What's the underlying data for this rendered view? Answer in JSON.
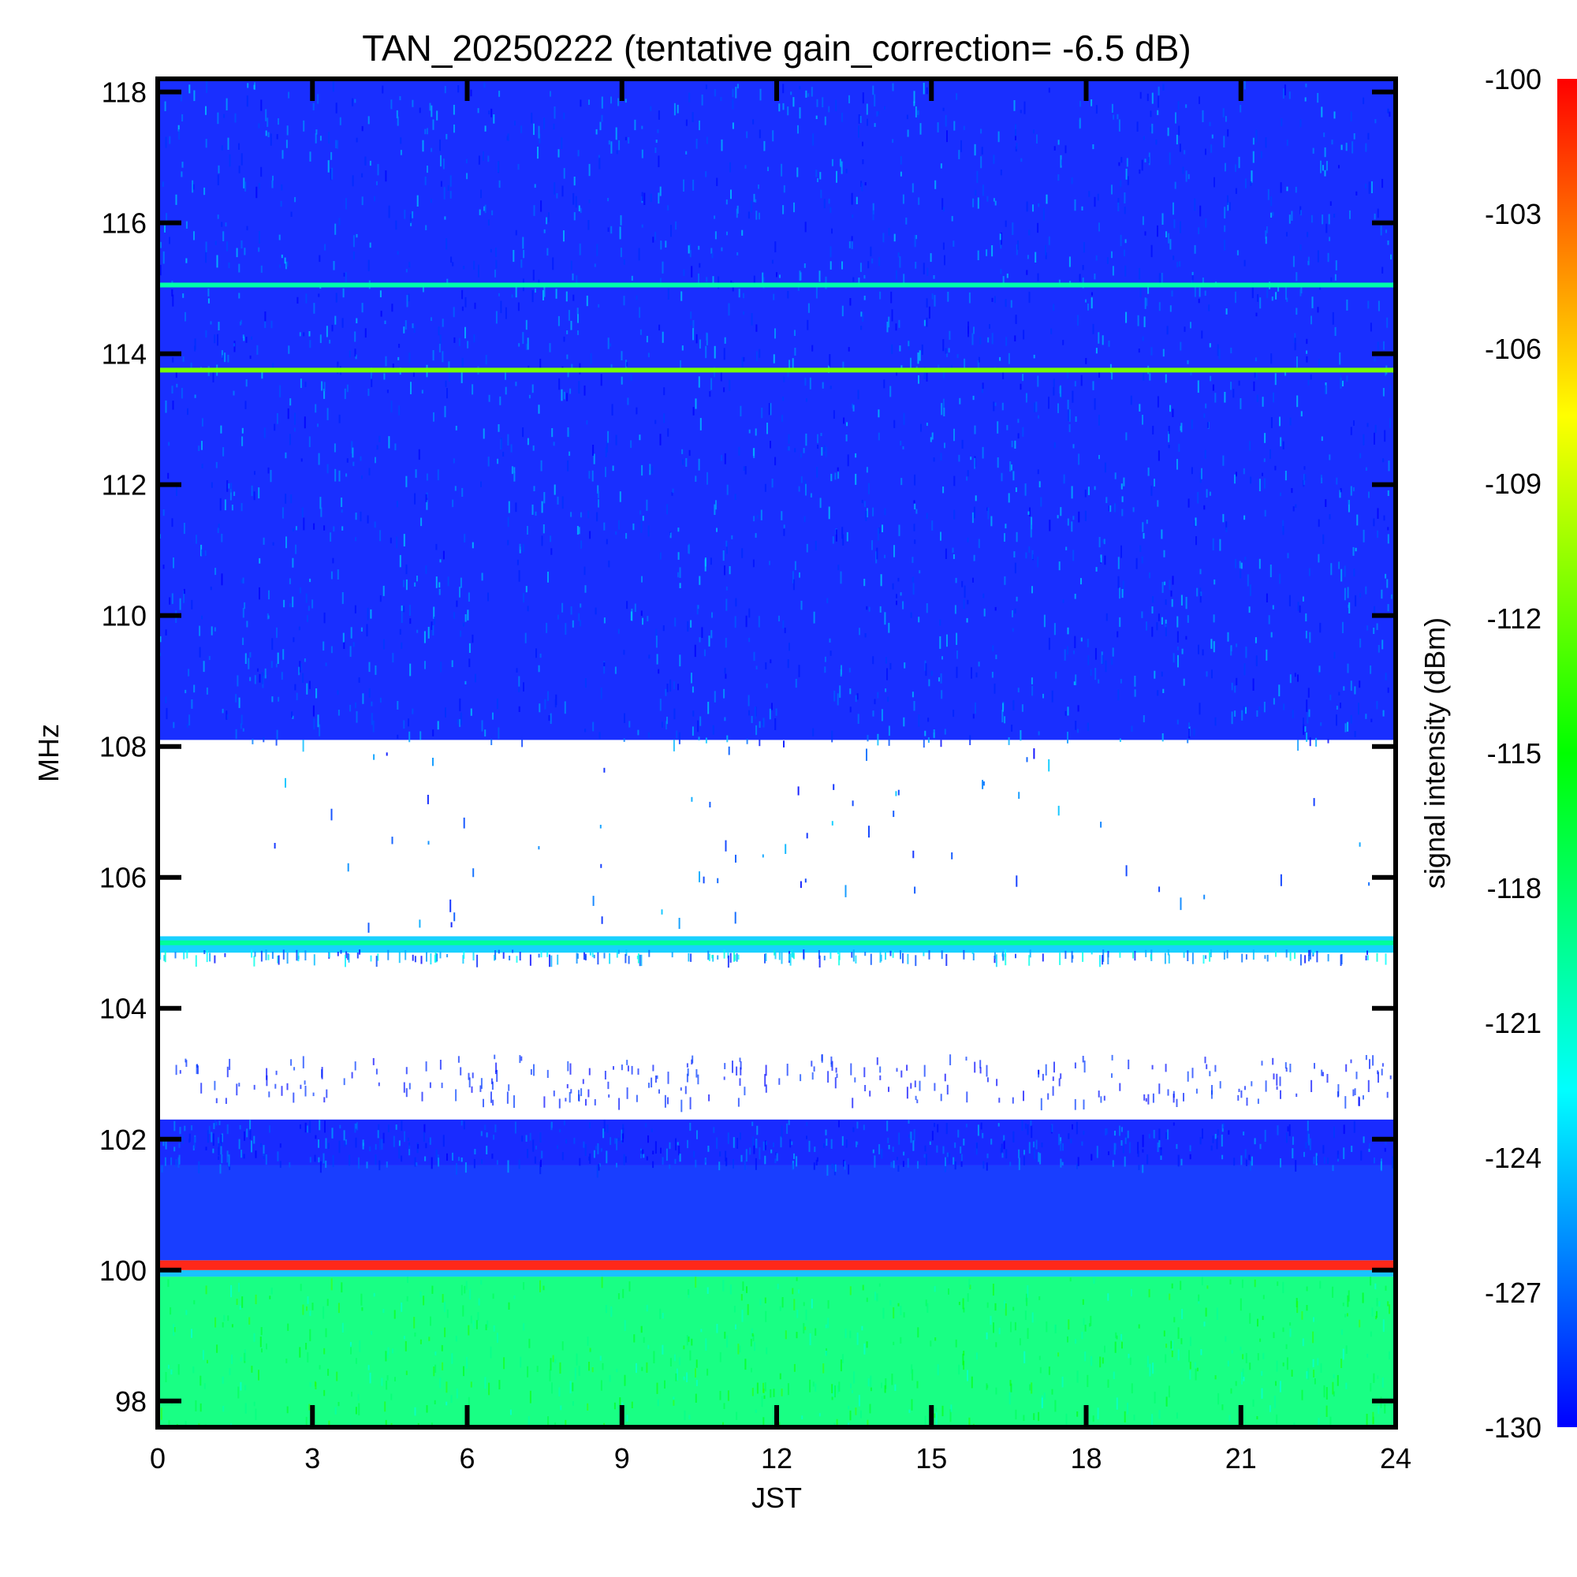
{
  "chart_data": {
    "type": "heatmap",
    "title": "TAN_20250222 (tentative gain_correction= -6.5 dB)",
    "xlabel": "JST",
    "ylabel": "MHz",
    "colorbar_label": "signal intensity (dBm)",
    "xlim": [
      0,
      24
    ],
    "ylim": [
      97.6,
      118.2
    ],
    "x_ticks": [
      0,
      3,
      6,
      9,
      12,
      15,
      18,
      21,
      24
    ],
    "x_tick_labels": [
      "0",
      "3",
      "6",
      "9",
      "12",
      "15",
      "18",
      "21",
      "24"
    ],
    "y_ticks": [
      98,
      100,
      102,
      104,
      106,
      108,
      110,
      112,
      114,
      116,
      118
    ],
    "y_tick_labels": [
      "98",
      "100",
      "102",
      "104",
      "106",
      "108",
      "110",
      "112",
      "114",
      "116",
      "118"
    ],
    "color_range": [
      -130,
      -100
    ],
    "colorbar_ticks": [
      -100,
      -103,
      -106,
      -109,
      -112,
      -115,
      -118,
      -121,
      -124,
      -127,
      -130
    ],
    "colorbar_tick_labels": [
      "-100",
      "-103",
      "-106",
      "-109",
      "-112",
      "-115",
      "-118",
      "-121",
      "-124",
      "-127",
      "-130"
    ],
    "colormap": [
      "#0000ff",
      "#00ffff",
      "#00ff00",
      "#ffff00",
      "#ff0000"
    ],
    "bands": [
      {
        "f_min": 97.6,
        "f_max": 99.9,
        "level_dBm": -118.5
      },
      {
        "f_min": 99.9,
        "f_max": 100.0,
        "level_dBm": -124.5
      },
      {
        "f_min": 100.0,
        "f_max": 100.15,
        "level_dBm": -100.5
      },
      {
        "f_min": 100.15,
        "f_max": 101.6,
        "level_dBm": -128.8
      },
      {
        "f_min": 101.6,
        "f_max": 102.3,
        "level_dBm": -129.4
      },
      {
        "f_min": 104.85,
        "f_max": 105.1,
        "level_dBm": -124.0
      },
      {
        "f_min": 108.1,
        "f_max": 118.2,
        "level_dBm": -129.3
      }
    ],
    "carriers": [
      {
        "freq_MHz": 105.0,
        "level_dBm": -119.5
      },
      {
        "freq_MHz": 113.75,
        "level_dBm": -111.5
      },
      {
        "freq_MHz": 115.05,
        "level_dBm": -120.0
      }
    ]
  }
}
